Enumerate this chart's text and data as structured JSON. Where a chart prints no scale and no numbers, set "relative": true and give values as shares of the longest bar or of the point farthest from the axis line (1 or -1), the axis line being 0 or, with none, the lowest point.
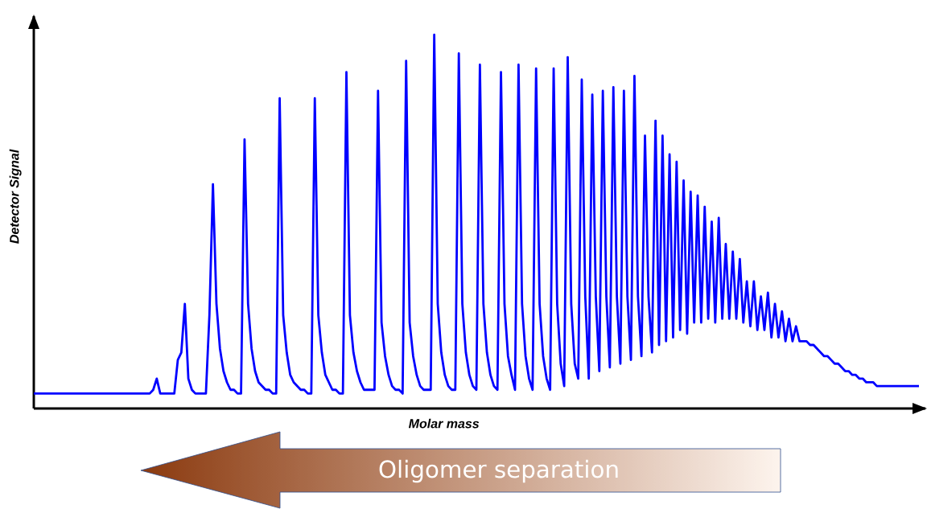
{
  "chart_data": {
    "type": "line",
    "relative": true,
    "xlabel": "Molar mass",
    "ylabel": "Detector Signal",
    "annotations": [
      "Oligomer separation"
    ],
    "categories": [
      null,
      null,
      null,
      null,
      null,
      null,
      null,
      null,
      null,
      null,
      null,
      null,
      null,
      null,
      null,
      null,
      null,
      null,
      null,
      null,
      null,
      null,
      null,
      null,
      null,
      null,
      null,
      null,
      null,
      null,
      null,
      null,
      null,
      null,
      null,
      null,
      null,
      null,
      null,
      null,
      null,
      null,
      null,
      null,
      null,
      null,
      null,
      null,
      null,
      null,
      null,
      null,
      null,
      null,
      null,
      null,
      null,
      null,
      null,
      null,
      null,
      null,
      null,
      null,
      null,
      null,
      null,
      null,
      null,
      null,
      null,
      null,
      null,
      null,
      null,
      null,
      null,
      null,
      null,
      null,
      null,
      null,
      null,
      null,
      null,
      null,
      null,
      null,
      null,
      null,
      null,
      null,
      null,
      null,
      null,
      null,
      null,
      null,
      null,
      null,
      null,
      null,
      null,
      null,
      null,
      null,
      null,
      null,
      null,
      null,
      null,
      null,
      null,
      null,
      null,
      null,
      null,
      null,
      null,
      null,
      null,
      null,
      null,
      null,
      null,
      null,
      null,
      null,
      null,
      null,
      null,
      null,
      null,
      null,
      null,
      null,
      null,
      null,
      null,
      null,
      null,
      null,
      null,
      null,
      null,
      null,
      null,
      null,
      null,
      null,
      null,
      null,
      null,
      null,
      null,
      null,
      null,
      null,
      null,
      null,
      null,
      null,
      null,
      null,
      null,
      null,
      null,
      null,
      null,
      null,
      null,
      null,
      null,
      null,
      null,
      null,
      null,
      null,
      null,
      null,
      null,
      null,
      null,
      null,
      null,
      null,
      null,
      null,
      null,
      null,
      null,
      null,
      null,
      null,
      null,
      null,
      null,
      null,
      null,
      null,
      null,
      null,
      null,
      null,
      null,
      null,
      null,
      null,
      null,
      null,
      null,
      null,
      null,
      null,
      null,
      null,
      null,
      null,
      null,
      null,
      null,
      null,
      null,
      null,
      null,
      null,
      null,
      null,
      null,
      null,
      null,
      null,
      null,
      null,
      null,
      null,
      null,
      null,
      null,
      null,
      null,
      null,
      null,
      null,
      null,
      null,
      null,
      null,
      null,
      null,
      null,
      null,
      null
    ],
    "series": [
      {
        "color": "#0000ff",
        "values": [
          0.04,
          0.04,
          0.04,
          0.04,
          0.04,
          0.04,
          0.04,
          0.04,
          0.04,
          0.04,
          0.04,
          0.04,
          0.04,
          0.04,
          0.04,
          0.04,
          0.04,
          0.04,
          0.04,
          0.04,
          0.04,
          0.04,
          0.04,
          0.04,
          0.04,
          0.04,
          0.04,
          0.04,
          0.04,
          0.04,
          0.04,
          0.04,
          0.04,
          0.04,
          0.05,
          0.08,
          0.04,
          0.04,
          0.04,
          0.04,
          0.04,
          0.13,
          0.15,
          0.28,
          0.08,
          0.05,
          0.04,
          0.04,
          0.04,
          0.04,
          0.25,
          0.6,
          0.28,
          0.16,
          0.1,
          0.07,
          0.05,
          0.05,
          0.04,
          0.04,
          0.72,
          0.28,
          0.16,
          0.1,
          0.07,
          0.06,
          0.05,
          0.05,
          0.04,
          0.04,
          0.83,
          0.25,
          0.15,
          0.09,
          0.07,
          0.06,
          0.05,
          0.05,
          0.04,
          0.04,
          0.83,
          0.25,
          0.15,
          0.09,
          0.07,
          0.05,
          0.05,
          0.04,
          0.04,
          0.9,
          0.25,
          0.15,
          0.1,
          0.07,
          0.05,
          0.05,
          0.05,
          0.05,
          0.85,
          0.23,
          0.14,
          0.09,
          0.06,
          0.05,
          0.05,
          0.04,
          0.93,
          0.23,
          0.14,
          0.09,
          0.06,
          0.05,
          0.05,
          0.05,
          1.0,
          0.28,
          0.15,
          0.09,
          0.06,
          0.05,
          0.05,
          0.95,
          0.28,
          0.15,
          0.09,
          0.06,
          0.05,
          0.92,
          0.28,
          0.15,
          0.09,
          0.06,
          0.05,
          0.9,
          0.28,
          0.14,
          0.09,
          0.05,
          0.92,
          0.28,
          0.14,
          0.08,
          0.05,
          0.91,
          0.28,
          0.14,
          0.08,
          0.05,
          0.91,
          0.28,
          0.12,
          0.06,
          0.94,
          0.28,
          0.12,
          0.08,
          0.88,
          0.3,
          0.08,
          0.84,
          0.3,
          0.1,
          0.85,
          0.3,
          0.11,
          0.86,
          0.3,
          0.12,
          0.85,
          0.3,
          0.13,
          0.89,
          0.3,
          0.14,
          0.73,
          0.3,
          0.15,
          0.77,
          0.17,
          0.73,
          0.18,
          0.68,
          0.19,
          0.66,
          0.21,
          0.61,
          0.2,
          0.58,
          0.23,
          0.57,
          0.23,
          0.54,
          0.24,
          0.5,
          0.23,
          0.51,
          0.24,
          0.44,
          0.24,
          0.42,
          0.24,
          0.4,
          0.23,
          0.34,
          0.22,
          0.34,
          0.21,
          0.3,
          0.21,
          0.31,
          0.19,
          0.28,
          0.19,
          0.26,
          0.18,
          0.24,
          0.18,
          0.22,
          0.18,
          0.18,
          0.18,
          0.17,
          0.17,
          0.16,
          0.15,
          0.14,
          0.14,
          0.13,
          0.12,
          0.12,
          0.11,
          0.1,
          0.1,
          0.09,
          0.09,
          0.08,
          0.08,
          0.07,
          0.07,
          0.07,
          0.06,
          0.06,
          0.06,
          0.06,
          0.06,
          0.06,
          0.06,
          0.06,
          0.06,
          0.06,
          0.06,
          0.06,
          0.06
        ]
      }
    ]
  }
}
